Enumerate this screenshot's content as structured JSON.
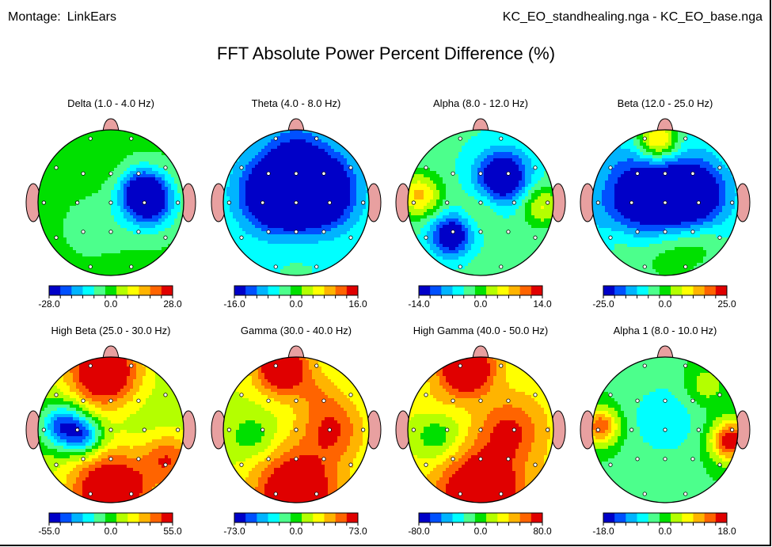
{
  "header": {
    "montage_label": "Montage:",
    "montage_value": "LinkEars",
    "files": "KC_EO_standhealing.nga - KC_EO_base.nga",
    "title": "FFT Absolute Power Percent Difference  (%)"
  },
  "chart_data": {
    "type": "heatmap",
    "title": "FFT Absolute Power Percent Difference  (%)",
    "colormap": [
      "#0000c8",
      "#0050ff",
      "#00b4ff",
      "#00ffff",
      "#4cff8c",
      "#00e000",
      "#b4ff00",
      "#ffff00",
      "#ffb400",
      "#ff6400",
      "#e00000"
    ],
    "maps": [
      {
        "band": "Delta (1.0 - 4.0 Hz)",
        "range": [
          -28.0,
          28.0
        ],
        "ticks": [
          "-28.0",
          "0.0",
          "28.0"
        ],
        "background": -0.05,
        "blobs": [
          [
            0.45,
            -0.15,
            0.22,
            -1.0
          ],
          [
            0.55,
            0.05,
            0.25,
            -0.6
          ],
          [
            -0.1,
            0.35,
            0.35,
            -0.15
          ],
          [
            -0.3,
            -0.6,
            0.3,
            0.1
          ],
          [
            0.0,
            0.7,
            0.3,
            0.05
          ]
        ]
      },
      {
        "band": "Theta (4.0 - 8.0 Hz)",
        "range": [
          -16.0,
          16.0
        ],
        "ticks": [
          "-16.0",
          "0.0",
          "16.0"
        ],
        "background": -0.3,
        "blobs": [
          [
            0.0,
            -0.2,
            0.42,
            -1.0
          ],
          [
            -0.3,
            -0.1,
            0.3,
            -0.7
          ],
          [
            0.35,
            -0.15,
            0.3,
            -0.8
          ],
          [
            0.0,
            0.6,
            0.35,
            0.1
          ],
          [
            0.0,
            -0.8,
            0.25,
            -0.2
          ]
        ]
      },
      {
        "band": "Alpha (8.0 - 12.0 Hz)",
        "range": [
          -14.0,
          14.0
        ],
        "ticks": [
          "-14.0",
          "0.0",
          "14.0"
        ],
        "background": -0.25,
        "blobs": [
          [
            0.3,
            -0.35,
            0.25,
            -1.0
          ],
          [
            -0.4,
            0.45,
            0.2,
            -0.9
          ],
          [
            -0.85,
            -0.1,
            0.22,
            0.75
          ],
          [
            0.85,
            0.05,
            0.2,
            0.55
          ],
          [
            0.0,
            0.75,
            0.3,
            0.05
          ],
          [
            0.0,
            0.1,
            0.2,
            0.2
          ]
        ]
      },
      {
        "band": "Beta (12.0 - 25.0 Hz)",
        "range": [
          -25.0,
          25.0
        ],
        "ticks": [
          "-25.0",
          "0.0",
          "25.0"
        ],
        "background": -0.3,
        "blobs": [
          [
            -0.2,
            -0.05,
            0.45,
            -1.0
          ],
          [
            0.4,
            -0.1,
            0.3,
            -0.8
          ],
          [
            -0.1,
            -0.85,
            0.2,
            0.95
          ],
          [
            0.0,
            0.65,
            0.35,
            0.45
          ],
          [
            0.5,
            0.55,
            0.25,
            0.2
          ],
          [
            -0.6,
            0.5,
            0.2,
            0.2
          ]
        ]
      },
      {
        "band": "High Beta (25.0 - 30.0 Hz)",
        "range": [
          -55.0,
          55.0
        ],
        "ticks": [
          "-55.0",
          "0.0",
          "55.0"
        ],
        "background": 0.15,
        "blobs": [
          [
            -0.1,
            -0.8,
            0.35,
            1.1
          ],
          [
            0.0,
            0.85,
            0.4,
            1.1
          ],
          [
            0.8,
            0.4,
            0.25,
            0.6
          ],
          [
            -0.65,
            -0.05,
            0.22,
            -0.95
          ],
          [
            -0.35,
            0.1,
            0.18,
            -0.7
          ],
          [
            0.3,
            -0.1,
            0.3,
            -0.05
          ]
        ]
      },
      {
        "band": "Gamma (30.0 - 40.0 Hz)",
        "range": [
          -73.0,
          73.0
        ],
        "ticks": [
          "-73.0",
          "0.0",
          "73.0"
        ],
        "background": 0.25,
        "blobs": [
          [
            -0.2,
            -0.85,
            0.25,
            1.0
          ],
          [
            0.0,
            0.85,
            0.4,
            1.0
          ],
          [
            0.5,
            0.0,
            0.3,
            0.55
          ],
          [
            -0.6,
            0.1,
            0.22,
            -0.3
          ],
          [
            -0.4,
            -0.1,
            0.2,
            0.0
          ],
          [
            0.3,
            -0.5,
            0.25,
            0.25
          ]
        ]
      },
      {
        "band": "High Gamma (40.0 - 50.0 Hz)",
        "range": [
          -80.0,
          80.0
        ],
        "ticks": [
          "-80.0",
          "0.0",
          "80.0"
        ],
        "background": 0.35,
        "blobs": [
          [
            -0.2,
            -0.85,
            0.25,
            1.05
          ],
          [
            0.0,
            0.85,
            0.4,
            0.95
          ],
          [
            -0.6,
            0.1,
            0.25,
            -0.4
          ],
          [
            0.4,
            0.0,
            0.3,
            0.5
          ],
          [
            -0.6,
            -0.35,
            0.18,
            0.1
          ]
        ]
      },
      {
        "band": "Alpha 1 (8.0 - 10.0 Hz)",
        "range": [
          -18.0,
          18.0
        ],
        "ticks": [
          "-18.0",
          "0.0",
          "18.0"
        ],
        "background": -0.1,
        "blobs": [
          [
            0.9,
            0.15,
            0.2,
            1.1
          ],
          [
            -0.88,
            -0.05,
            0.18,
            0.9
          ],
          [
            0.0,
            -0.15,
            0.4,
            -0.3
          ],
          [
            0.0,
            0.75,
            0.35,
            0.0
          ],
          [
            0.55,
            -0.6,
            0.2,
            0.35
          ]
        ]
      }
    ]
  }
}
